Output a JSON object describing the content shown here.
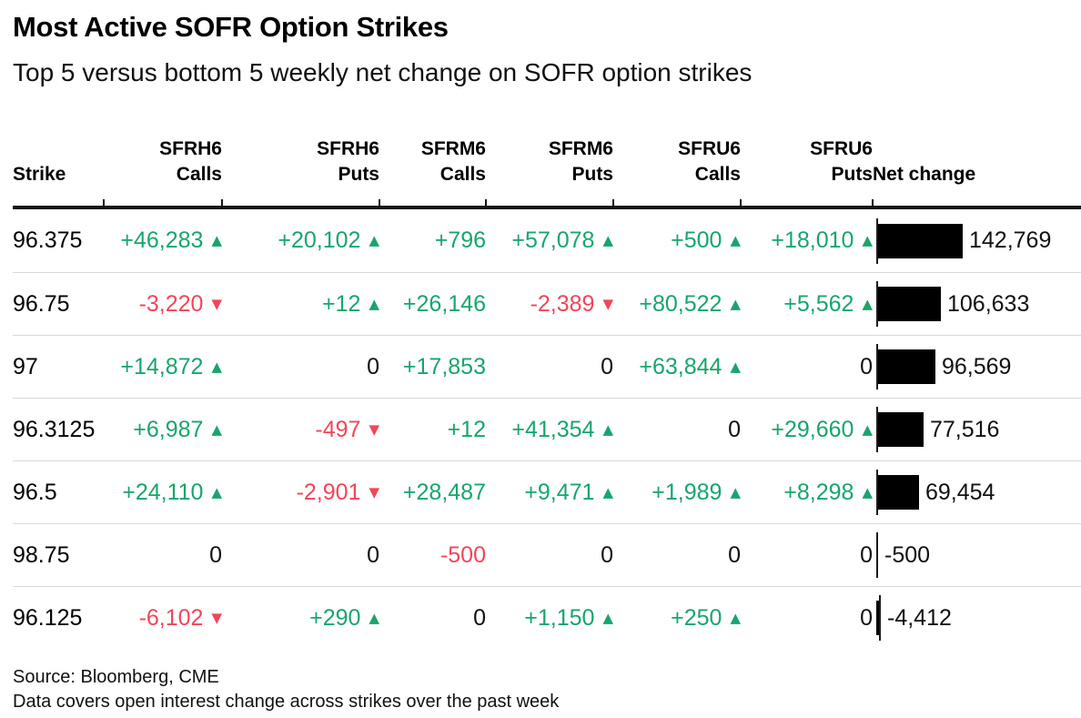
{
  "header": {
    "title": "Most Active SOFR Option Strikes",
    "subtitle": "Top 5 versus bottom 5 weekly net change on SOFR option strikes"
  },
  "colors": {
    "positive": "#18a56d",
    "negative": "#f0465a",
    "bar": "#000000",
    "header_rule": "#141414",
    "row_separator": "#d9d9d9"
  },
  "table": {
    "headers": [
      {
        "top": "",
        "bottom": "Strike"
      },
      {
        "top": "SFRH6",
        "bottom": "Calls"
      },
      {
        "top": "SFRH6",
        "bottom": "Puts"
      },
      {
        "top": "SFRM6",
        "bottom": "Calls"
      },
      {
        "top": "SFRM6",
        "bottom": "Puts"
      },
      {
        "top": "SFRU6",
        "bottom": "Calls"
      },
      {
        "top": "SFRU6",
        "bottom": "Puts"
      },
      {
        "top": "",
        "bottom": "Net change"
      }
    ],
    "rows": [
      {
        "strike": "96.375",
        "cells": [
          {
            "text": "+46,283",
            "arrow": "up"
          },
          {
            "text": "+20,102",
            "arrow": "up"
          },
          {
            "text": "+796",
            "arrow": null
          },
          {
            "text": "+57,078",
            "arrow": "up"
          },
          {
            "text": "+500",
            "arrow": "up"
          },
          {
            "text": "+18,010",
            "arrow": "up"
          }
        ],
        "net_change": {
          "value": 142769,
          "label": "142,769"
        }
      },
      {
        "strike": "96.75",
        "cells": [
          {
            "text": "-3,220",
            "arrow": "down"
          },
          {
            "text": "+12",
            "arrow": "up"
          },
          {
            "text": "+26,146",
            "arrow": null
          },
          {
            "text": "-2,389",
            "arrow": "down"
          },
          {
            "text": "+80,522",
            "arrow": "up"
          },
          {
            "text": "+5,562",
            "arrow": "up"
          }
        ],
        "net_change": {
          "value": 106633,
          "label": "106,633"
        }
      },
      {
        "strike": "97",
        "cells": [
          {
            "text": "+14,872",
            "arrow": "up"
          },
          {
            "text": "0",
            "arrow": null
          },
          {
            "text": "+17,853",
            "arrow": null
          },
          {
            "text": "0",
            "arrow": null
          },
          {
            "text": "+63,844",
            "arrow": "up"
          },
          {
            "text": "0",
            "arrow": null
          }
        ],
        "net_change": {
          "value": 96569,
          "label": "96,569"
        }
      },
      {
        "strike": "96.3125",
        "cells": [
          {
            "text": "+6,987",
            "arrow": "up"
          },
          {
            "text": "-497",
            "arrow": "down"
          },
          {
            "text": "+12",
            "arrow": null
          },
          {
            "text": "+41,354",
            "arrow": "up"
          },
          {
            "text": "0",
            "arrow": null
          },
          {
            "text": "+29,660",
            "arrow": "up"
          }
        ],
        "net_change": {
          "value": 77516,
          "label": "77,516"
        }
      },
      {
        "strike": "96.5",
        "cells": [
          {
            "text": "+24,110",
            "arrow": "up"
          },
          {
            "text": "-2,901",
            "arrow": "down"
          },
          {
            "text": "+28,487",
            "arrow": null
          },
          {
            "text": "+9,471",
            "arrow": "up"
          },
          {
            "text": "+1,989",
            "arrow": "up"
          },
          {
            "text": "+8,298",
            "arrow": "up"
          }
        ],
        "net_change": {
          "value": 69454,
          "label": "69,454"
        }
      },
      {
        "strike": "98.75",
        "cells": [
          {
            "text": "0",
            "arrow": null
          },
          {
            "text": "0",
            "arrow": null
          },
          {
            "text": "-500",
            "arrow": null
          },
          {
            "text": "0",
            "arrow": null
          },
          {
            "text": "0",
            "arrow": null
          },
          {
            "text": "0",
            "arrow": null
          }
        ],
        "net_change": {
          "value": -500,
          "label": "-500"
        }
      },
      {
        "strike": "96.125",
        "cells": [
          {
            "text": "-6,102",
            "arrow": "down"
          },
          {
            "text": "+290",
            "arrow": "up"
          },
          {
            "text": "0",
            "arrow": null
          },
          {
            "text": "+1,150",
            "arrow": "up"
          },
          {
            "text": "+250",
            "arrow": "up"
          },
          {
            "text": "0",
            "arrow": null
          }
        ],
        "net_change": {
          "value": -4412,
          "label": "-4,412"
        }
      }
    ]
  },
  "chart_data": {
    "type": "table",
    "title": "Most Active SOFR Option Strikes",
    "subtitle": "Top 5 versus bottom 5 weekly net change on SOFR option strikes",
    "columns": [
      "Strike",
      "SFRH6 Calls",
      "SFRH6 Puts",
      "SFRM6 Calls",
      "SFRM6 Puts",
      "SFRU6 Calls",
      "SFRU6 Puts",
      "Net change"
    ],
    "rows": [
      [
        96.375,
        46283,
        20102,
        796,
        57078,
        500,
        18010,
        142769
      ],
      [
        96.75,
        -3220,
        12,
        26146,
        -2389,
        80522,
        5562,
        106633
      ],
      [
        97,
        14872,
        0,
        17853,
        0,
        63844,
        0,
        96569
      ],
      [
        96.3125,
        6987,
        -497,
        12,
        41354,
        0,
        29660,
        77516
      ],
      [
        96.5,
        24110,
        -2901,
        28487,
        9471,
        1989,
        8298,
        69454
      ],
      [
        98.75,
        0,
        0,
        -500,
        0,
        0,
        0,
        -500
      ],
      [
        96.125,
        -6102,
        290,
        0,
        1150,
        250,
        0,
        -4412
      ]
    ],
    "bar_column": "Net change",
    "bar_axis_max": 142769,
    "legend": "none",
    "notes": [
      "Black horizontal bars in Net change column are scaled to bar_axis_max; negative values draw left of the baseline tick"
    ]
  },
  "footer": {
    "source": "Source: Bloomberg, CME",
    "note": "Data covers open interest change across strikes over the past week"
  }
}
